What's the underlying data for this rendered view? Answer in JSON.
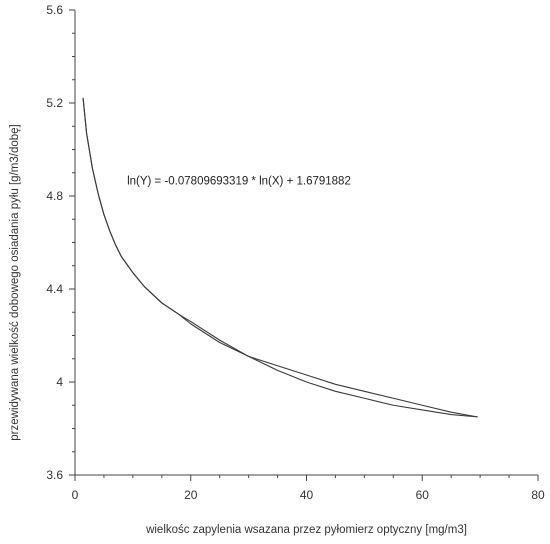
{
  "chart_data": {
    "type": "line",
    "xlabel": "wielkośc zapylenia wsazana przez pyłomierz optyczny [mg/m3]",
    "ylabel": "przewidywana wielkość dobowego osiadania pyłu [g/m3/dobę]",
    "xlim": [
      0,
      80
    ],
    "ylim": [
      3.6,
      5.6
    ],
    "x_ticks": [
      0,
      20,
      40,
      60,
      80
    ],
    "y_ticks": [
      3.6,
      4,
      4.4,
      4.8,
      5.2,
      5.6
    ],
    "x_tick_labels": [
      "0",
      "20",
      "40",
      "60",
      "80"
    ],
    "y_tick_labels": [
      "3.6",
      "4",
      "4.4",
      "4.8",
      "5.2",
      "5.6"
    ],
    "grid": false,
    "annotation": "ln(Y) = -0.07809693319 * ln(X) + 1.6791882",
    "line_color": "#3a3a3a",
    "series": [
      {
        "points": [
          [
            1.4,
            5.22
          ],
          [
            2,
            5.07
          ],
          [
            3,
            4.92
          ],
          [
            4,
            4.81
          ],
          [
            5,
            4.72
          ],
          [
            6,
            4.65
          ],
          [
            7,
            4.59
          ],
          [
            8,
            4.54
          ],
          [
            10,
            4.47
          ],
          [
            12,
            4.41
          ],
          [
            15,
            4.34
          ],
          [
            18,
            4.29
          ],
          [
            20,
            4.26
          ],
          [
            25,
            4.18
          ],
          [
            30,
            4.11
          ],
          [
            35,
            4.07
          ],
          [
            40,
            4.03
          ],
          [
            45,
            3.99
          ],
          [
            50,
            3.96
          ],
          [
            55,
            3.93
          ],
          [
            60,
            3.9
          ],
          [
            65,
            3.87
          ],
          [
            69.5,
            3.85
          ]
        ]
      },
      {
        "points": [
          [
            1.4,
            5.22
          ],
          [
            2,
            5.07
          ],
          [
            3,
            4.92
          ],
          [
            4,
            4.81
          ],
          [
            5,
            4.72
          ],
          [
            6,
            4.65
          ],
          [
            7,
            4.59
          ],
          [
            8,
            4.54
          ],
          [
            10,
            4.47
          ],
          [
            12,
            4.41
          ],
          [
            15,
            4.34
          ],
          [
            18,
            4.29
          ],
          [
            20,
            4.25
          ],
          [
            25,
            4.17
          ],
          [
            30,
            4.11
          ],
          [
            35,
            4.05
          ],
          [
            40,
            4.0
          ],
          [
            45,
            3.96
          ],
          [
            50,
            3.93
          ],
          [
            55,
            3.9
          ],
          [
            60,
            3.88
          ],
          [
            65,
            3.86
          ],
          [
            69.5,
            3.85
          ]
        ]
      }
    ]
  }
}
